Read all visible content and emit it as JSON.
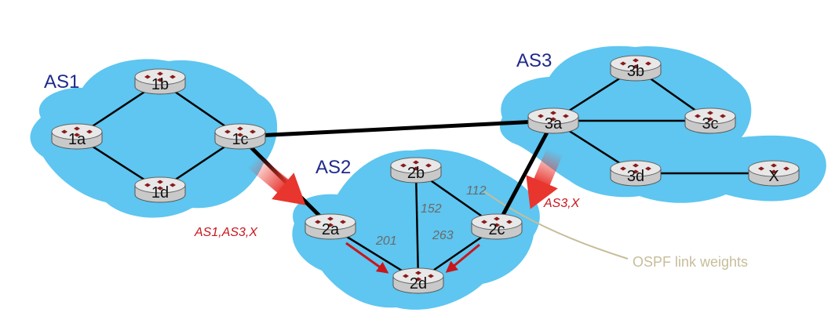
{
  "colors": {
    "cloud": "#5ec6f0",
    "link": "#000000",
    "router_body": "#c9c9c9",
    "router_top": "#e8e8e8",
    "router_mark": "#8b1a1a",
    "as_label": "#1f2a8a",
    "path_label": "#c8161d",
    "weight_label": "#6a6a6a",
    "callout": "#c7bd9a",
    "arrow": "#c8161d"
  },
  "autonomous_systems": [
    {
      "id": "as1",
      "label": "AS1"
    },
    {
      "id": "as2",
      "label": "AS2"
    },
    {
      "id": "as3",
      "label": "AS3"
    }
  ],
  "routers": [
    {
      "id": "1a",
      "label": "1a"
    },
    {
      "id": "1b",
      "label": "1b"
    },
    {
      "id": "1c",
      "label": "1c"
    },
    {
      "id": "1d",
      "label": "1d"
    },
    {
      "id": "2a",
      "label": "2a"
    },
    {
      "id": "2b",
      "label": "2b"
    },
    {
      "id": "2c",
      "label": "2c"
    },
    {
      "id": "2d",
      "label": "2d"
    },
    {
      "id": "3a",
      "label": "3a"
    },
    {
      "id": "3b",
      "label": "3b"
    },
    {
      "id": "3c",
      "label": "3c"
    },
    {
      "id": "3d",
      "label": "3d"
    },
    {
      "id": "x",
      "label": "X"
    }
  ],
  "links": [
    {
      "from": "1a",
      "to": "1b",
      "type": "internal"
    },
    {
      "from": "1b",
      "to": "1c",
      "type": "internal"
    },
    {
      "from": "1c",
      "to": "1d",
      "type": "internal"
    },
    {
      "from": "1d",
      "to": "1a",
      "type": "internal"
    },
    {
      "from": "1c",
      "to": "3a",
      "type": "external"
    },
    {
      "from": "1c",
      "to": "2a",
      "type": "external"
    },
    {
      "from": "3a",
      "to": "2c",
      "type": "external"
    },
    {
      "from": "2a",
      "to": "2d",
      "type": "internal",
      "weight": "201"
    },
    {
      "from": "2b",
      "to": "2d",
      "type": "internal",
      "weight": "152"
    },
    {
      "from": "2b",
      "to": "2c",
      "type": "internal",
      "weight": "112"
    },
    {
      "from": "2c",
      "to": "2d",
      "type": "internal",
      "weight": "263"
    },
    {
      "from": "3a",
      "to": "3b",
      "type": "internal"
    },
    {
      "from": "3b",
      "to": "3c",
      "type": "internal"
    },
    {
      "from": "3a",
      "to": "3c",
      "type": "internal"
    },
    {
      "from": "3a",
      "to": "3d",
      "type": "internal"
    },
    {
      "from": "3d",
      "to": "x",
      "type": "internal"
    }
  ],
  "path_advertisements": [
    {
      "at": "2a",
      "label": "AS1,AS3,X"
    },
    {
      "at": "2c",
      "label": "AS3,X"
    }
  ],
  "callout": {
    "label": "OSPF link weights"
  }
}
